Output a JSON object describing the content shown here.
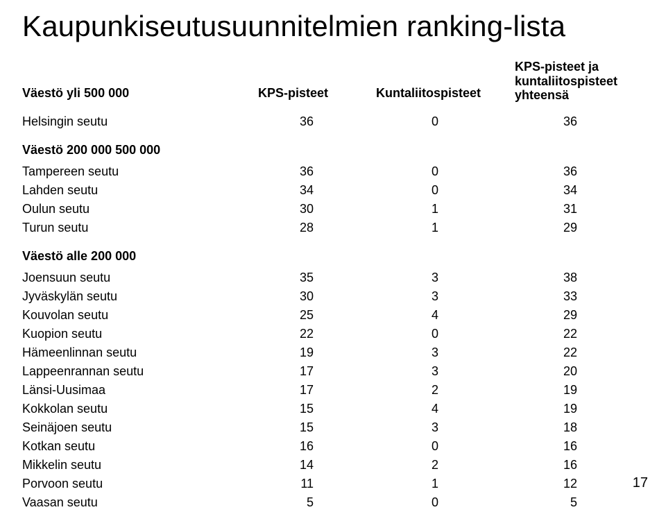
{
  "title": "Kaupunkiseutusuunnitelmien ranking-lista",
  "columns": {
    "col1_sec1": "Väestö yli 500 000",
    "col2": "KPS-pisteet",
    "col3": "Kuntaliitospisteet",
    "col4_line1": "KPS-pisteet ja",
    "col4_line2": "kuntaliitospisteet",
    "col4_line3": "yhteensä"
  },
  "section1": {
    "rows": [
      {
        "name": "Helsingin seutu",
        "kps": 36,
        "kunta": 0,
        "sum": 36
      }
    ]
  },
  "section2": {
    "heading": "Väestö 200 000 500 000",
    "rows": [
      {
        "name": "Tampereen seutu",
        "kps": 36,
        "kunta": 0,
        "sum": 36
      },
      {
        "name": "Lahden seutu",
        "kps": 34,
        "kunta": 0,
        "sum": 34
      },
      {
        "name": "Oulun seutu",
        "kps": 30,
        "kunta": 1,
        "sum": 31
      },
      {
        "name": "Turun seutu",
        "kps": 28,
        "kunta": 1,
        "sum": 29
      }
    ]
  },
  "section3": {
    "heading": "Väestö alle 200 000",
    "rows": [
      {
        "name": "Joensuun seutu",
        "kps": 35,
        "kunta": 3,
        "sum": 38
      },
      {
        "name": "Jyväskylän seutu",
        "kps": 30,
        "kunta": 3,
        "sum": 33
      },
      {
        "name": "Kouvolan seutu",
        "kps": 25,
        "kunta": 4,
        "sum": 29
      },
      {
        "name": "Kuopion seutu",
        "kps": 22,
        "kunta": 0,
        "sum": 22
      },
      {
        "name": "Hämeenlinnan seutu",
        "kps": 19,
        "kunta": 3,
        "sum": 22
      },
      {
        "name": "Lappeenrannan seutu",
        "kps": 17,
        "kunta": 3,
        "sum": 20
      },
      {
        "name": "Länsi-Uusimaa",
        "kps": 17,
        "kunta": 2,
        "sum": 19
      },
      {
        "name": "Kokkolan seutu",
        "kps": 15,
        "kunta": 4,
        "sum": 19
      },
      {
        "name": "Seinäjoen seutu",
        "kps": 15,
        "kunta": 3,
        "sum": 18
      },
      {
        "name": "Kotkan seutu",
        "kps": 16,
        "kunta": 0,
        "sum": 16
      },
      {
        "name": "Mikkelin seutu",
        "kps": 14,
        "kunta": 2,
        "sum": 16
      },
      {
        "name": "Porvoon seutu",
        "kps": 11,
        "kunta": 1,
        "sum": 12
      },
      {
        "name": "Vaasan seutu",
        "kps": 5,
        "kunta": 0,
        "sum": 5
      }
    ]
  },
  "page_number": "17",
  "style": {
    "background": "#ffffff",
    "text_color": "#000000",
    "title_fontsize": 42,
    "body_fontsize": 18,
    "font_family": "Arial"
  }
}
